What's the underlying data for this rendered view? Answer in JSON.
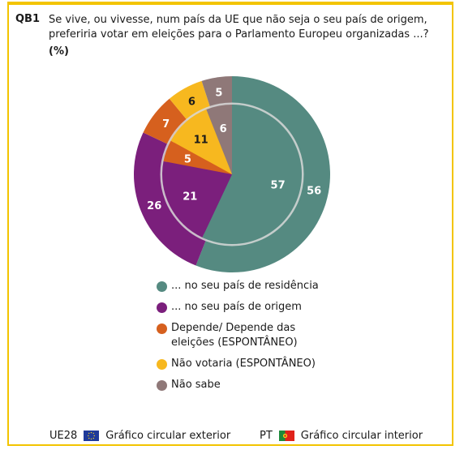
{
  "question": {
    "code": "QB1",
    "text": "Se vive, ou vivesse, num país da UE que não seja o seu país de origem, preferiria votar em eleições para o Parlamento Europeu organizadas ...?",
    "unit": "(%)"
  },
  "chart_data": {
    "type": "pie",
    "categories": [
      "... no seu país de residência",
      "... no seu país de origem",
      "Depende/ Depende das eleições (ESPONTÂNEO)",
      "Não votaria (ESPONTÂNEO)",
      "Não sabe"
    ],
    "colors": [
      "#558a81",
      "#7b1f7c",
      "#d6601e",
      "#f7b81f",
      "#8f7878"
    ],
    "series": [
      {
        "name": "UE28",
        "ring": "outer",
        "values": [
          56,
          26,
          7,
          6,
          5
        ]
      },
      {
        "name": "PT",
        "ring": "inner",
        "values": [
          57,
          21,
          5,
          11,
          6
        ]
      }
    ]
  },
  "legend": {
    "items": [
      {
        "label": "... no seu país de residência",
        "color": "#558a81"
      },
      {
        "label": "... no seu país de origem",
        "color": "#7b1f7c"
      },
      {
        "label": "Depende/ Depende das eleições (ESPONTÂNEO)",
        "color": "#d6601e"
      },
      {
        "label": "Não votaria (ESPONTÂNEO)",
        "color": "#f7b81f"
      },
      {
        "label": "Não sabe",
        "color": "#8f7878"
      }
    ]
  },
  "footer": {
    "outer": {
      "code": "UE28",
      "flag": "eu-flag-icon",
      "label": "Gráfico circular exterior"
    },
    "inner": {
      "code": "PT",
      "flag": "portugal-flag-icon",
      "label": "Gráfico circular interior"
    }
  }
}
